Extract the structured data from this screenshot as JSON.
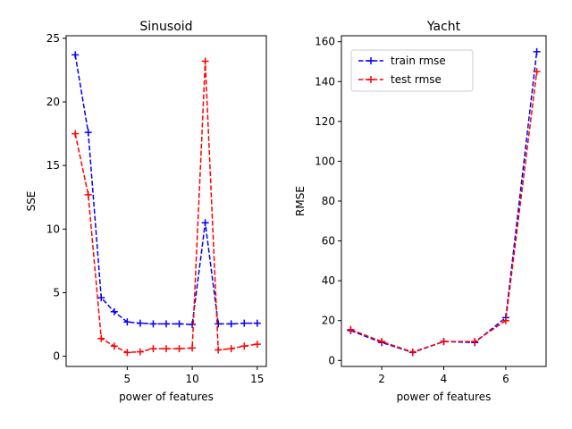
{
  "chart_data": [
    {
      "type": "line",
      "title": "Sinusoid",
      "xlabel": "power of features",
      "ylabel": "SSE",
      "xlim": [
        0.3,
        15.7
      ],
      "ylim": [
        -0.8,
        25.2
      ],
      "xticks": [
        5,
        10,
        15
      ],
      "yticks": [
        0,
        5,
        10,
        15,
        20,
        25
      ],
      "legend": null,
      "x": [
        1,
        2,
        3,
        4,
        5,
        6,
        7,
        8,
        9,
        10,
        11,
        12,
        13,
        14,
        15
      ],
      "series": [
        {
          "color": "#0000ff",
          "linestyle": "dashed",
          "marker": "+",
          "values": [
            23.7,
            17.6,
            4.6,
            3.5,
            2.7,
            2.6,
            2.55,
            2.55,
            2.55,
            2.5,
            10.5,
            2.55,
            2.55,
            2.6,
            2.6
          ]
        },
        {
          "color": "#ff0000",
          "linestyle": "dashed",
          "marker": "+",
          "values": [
            17.5,
            12.7,
            1.4,
            0.8,
            0.3,
            0.35,
            0.6,
            0.6,
            0.6,
            0.65,
            23.2,
            0.5,
            0.6,
            0.8,
            0.95
          ]
        }
      ]
    },
    {
      "type": "line",
      "title": "Yacht",
      "xlabel": "power of features",
      "ylabel": "RMSE",
      "xlim": [
        0.7,
        7.3
      ],
      "ylim": [
        -3,
        163
      ],
      "xticks": [
        2,
        4,
        6
      ],
      "yticks": [
        0,
        20,
        40,
        60,
        80,
        100,
        120,
        140,
        160
      ],
      "legend": "top-left",
      "x": [
        1,
        2,
        3,
        4,
        5,
        6,
        7
      ],
      "series": [
        {
          "name": "train rmse",
          "color": "#0000ff",
          "linestyle": "dashed",
          "marker": "+",
          "values": [
            15,
            9,
            4,
            9.5,
            9,
            21.5,
            155
          ]
        },
        {
          "name": "test rmse",
          "color": "#ff0000",
          "linestyle": "dashed",
          "marker": "+",
          "values": [
            15.5,
            9.5,
            4.2,
            9.5,
            9.5,
            20,
            145
          ]
        }
      ]
    }
  ]
}
